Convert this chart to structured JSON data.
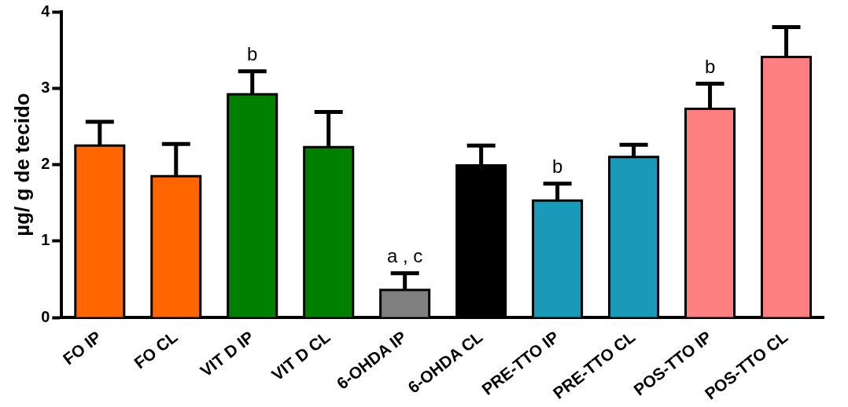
{
  "chart_data": {
    "type": "bar",
    "ylabel": "µg/ g de tecido",
    "categories": [
      "FO IP",
      "FO CL",
      "VIT D IP",
      "VIT D CL",
      "6-OHDA IP",
      "6-OHDA CL",
      "PRE-TTO IP",
      "PRE-TTO CL",
      "POS-TTO IP",
      "POS-TTO CL"
    ],
    "values": [
      2.25,
      1.85,
      2.92,
      2.23,
      0.36,
      1.99,
      1.53,
      2.1,
      2.73,
      3.41
    ],
    "colors": [
      "#ff6600",
      "#ff6600",
      "#008000",
      "#008000",
      "#808080",
      "#000000",
      "#1a9ab8",
      "#1a9ab8",
      "#ff8080",
      "#ff8080"
    ],
    "errors": [
      [
        2.25,
        2.56
      ],
      [
        1.85,
        2.27
      ],
      [
        2.92,
        3.22
      ],
      [
        2.23,
        2.69
      ],
      [
        0.36,
        0.58
      ],
      [
        1.99,
        2.25
      ],
      [
        1.53,
        1.75
      ],
      [
        2.1,
        2.26
      ],
      [
        2.73,
        3.06
      ],
      [
        3.41,
        3.8
      ]
    ],
    "ylim": [
      0,
      4
    ],
    "yticks": [
      0,
      1,
      2,
      3,
      4
    ],
    "grid": false,
    "legend": false,
    "annotations": [
      {
        "text": "b",
        "x": "VIT D IP",
        "y": 3.22
      },
      {
        "text": "a , c",
        "x": "6-OHDA IP",
        "y": 0.58
      },
      {
        "text": "b",
        "x": "PRE-TTO IP",
        "y": 1.75
      },
      {
        "text": "b",
        "x": "POS-TTO IP",
        "y": 3.06
      }
    ]
  }
}
